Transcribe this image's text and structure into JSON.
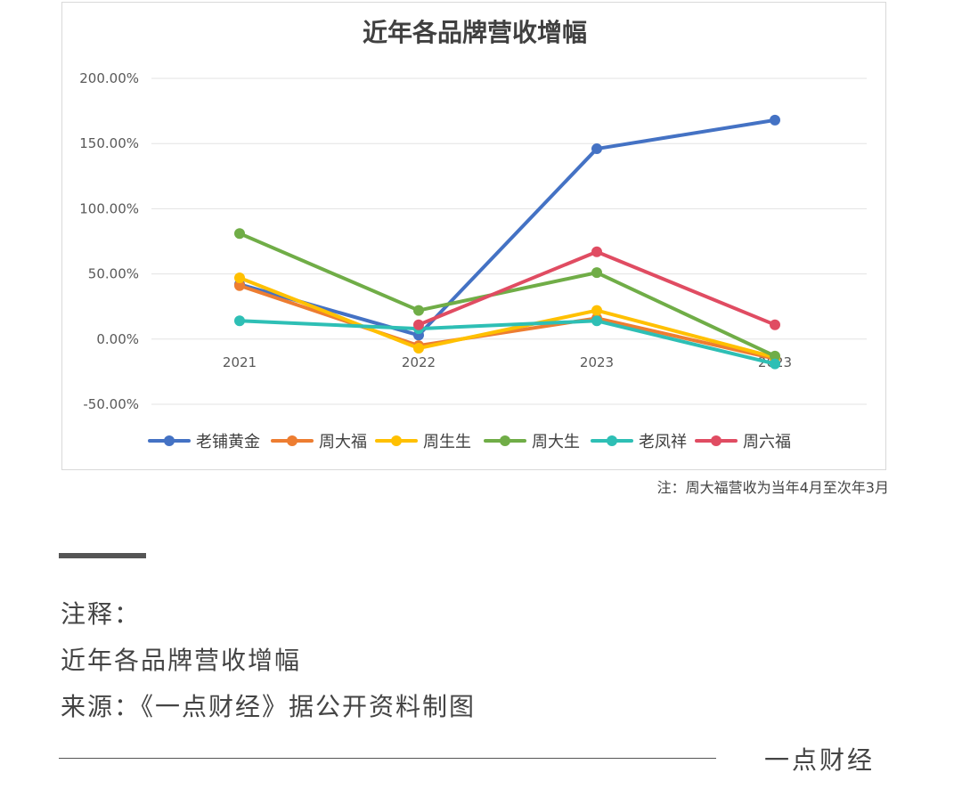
{
  "chart_data": {
    "type": "line",
    "title": "近年各品牌营收增幅",
    "categories": [
      "2021",
      "2022",
      "2023",
      "2023"
    ],
    "y_ticks": [
      "200.00%",
      "150.00%",
      "100.00%",
      "50.00%",
      "0.00%",
      "-50.00%"
    ],
    "ylim": [
      -50,
      200
    ],
    "grid": true,
    "legend_position": "bottom",
    "series": [
      {
        "name": "老铺黄金",
        "color": "#4472C4",
        "values": [
          42,
          3,
          146,
          168
        ]
      },
      {
        "name": "周大福",
        "color": "#ED7D31",
        "values": [
          41,
          -5,
          16,
          -15
        ]
      },
      {
        "name": "周生生",
        "color": "#FFC000",
        "values": [
          47,
          -7,
          22,
          -14
        ]
      },
      {
        "name": "周大生",
        "color": "#70AD47",
        "values": [
          81,
          22,
          51,
          -13
        ]
      },
      {
        "name": "老凤祥",
        "color": "#2EBFB5",
        "values": [
          14,
          8,
          14,
          -19
        ]
      },
      {
        "name": "周六福",
        "color": "#E04C62",
        "values": [
          null,
          11,
          67,
          11
        ]
      }
    ]
  },
  "chart_note": "注：周大福营收为当年4月至次年3月",
  "caption": {
    "label": "注释：",
    "title": "近年各品牌营收增幅",
    "source": "来源：《一点财经》据公开资料制图"
  },
  "brand": "一点财经"
}
